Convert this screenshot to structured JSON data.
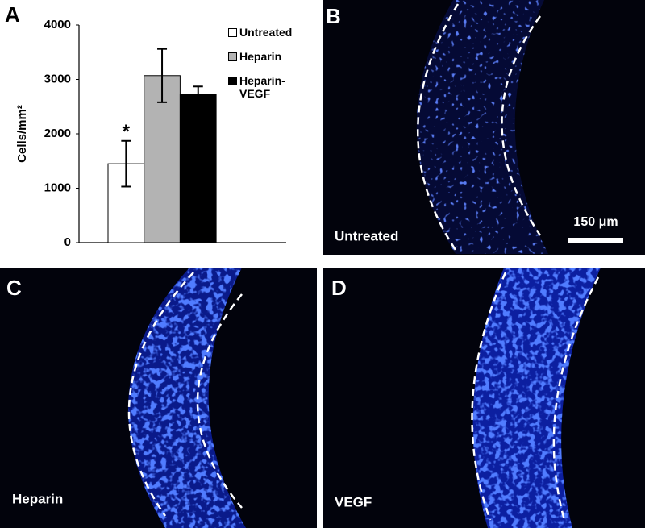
{
  "chart_data": {
    "type": "bar",
    "panel_label": "A",
    "y_label": "Cells/mm²",
    "categories": [
      null
    ],
    "series": [
      {
        "name": "Untreated",
        "color": "#ffffff",
        "values": [
          1450
        ],
        "errors": [
          420
        ]
      },
      {
        "name": "Heparin",
        "color": "#b3b3b3",
        "values": [
          3070
        ],
        "errors": [
          490
        ]
      },
      {
        "name": "Heparin-VEGF",
        "color": "#000000",
        "values": [
          2720
        ],
        "errors": [
          150
        ]
      }
    ],
    "annotation": "*",
    "ylim": [
      0,
      4000
    ],
    "yticks": [
      0,
      1000,
      2000,
      3000,
      4000
    ],
    "grid": false
  },
  "panels": [
    {
      "label": "B",
      "caption": "Untreated",
      "scale_bar": "150 μm"
    },
    {
      "label": "C",
      "caption": "Heparin"
    },
    {
      "label": "D",
      "caption": "VEGF"
    }
  ]
}
